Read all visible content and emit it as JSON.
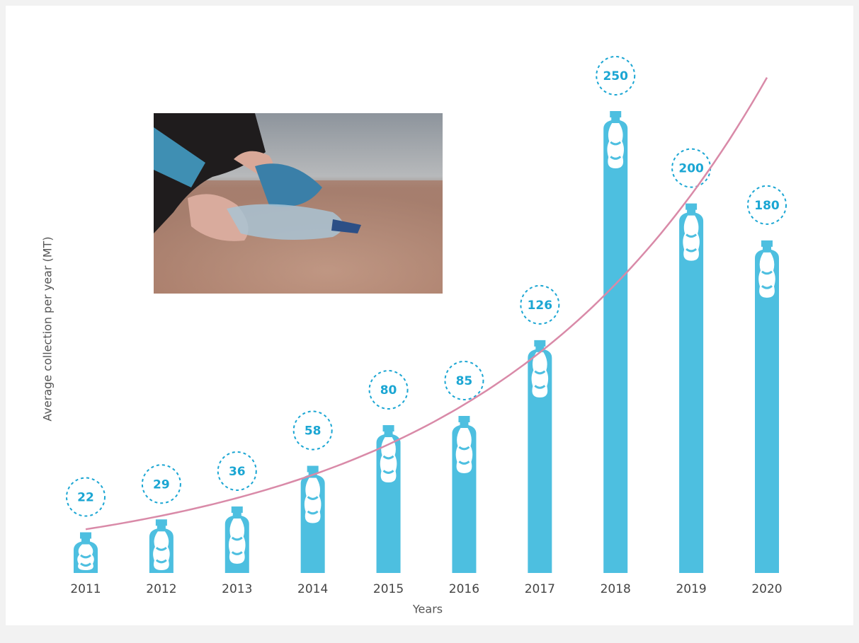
{
  "chart_data": {
    "type": "bar",
    "categories": [
      "2011",
      "2012",
      "2013",
      "2014",
      "2015",
      "2016",
      "2017",
      "2018",
      "2019",
      "2020"
    ],
    "values": [
      22,
      29,
      36,
      58,
      80,
      85,
      126,
      250,
      200,
      180
    ],
    "color": "#4dbfe0",
    "label_color": "#1ba6d3",
    "ylim": [
      0,
      250
    ],
    "x_label": "Years",
    "y_label": "Average collection per year (MT)",
    "trendline": {
      "type": "exponential",
      "color": "#d98aa8"
    }
  }
}
